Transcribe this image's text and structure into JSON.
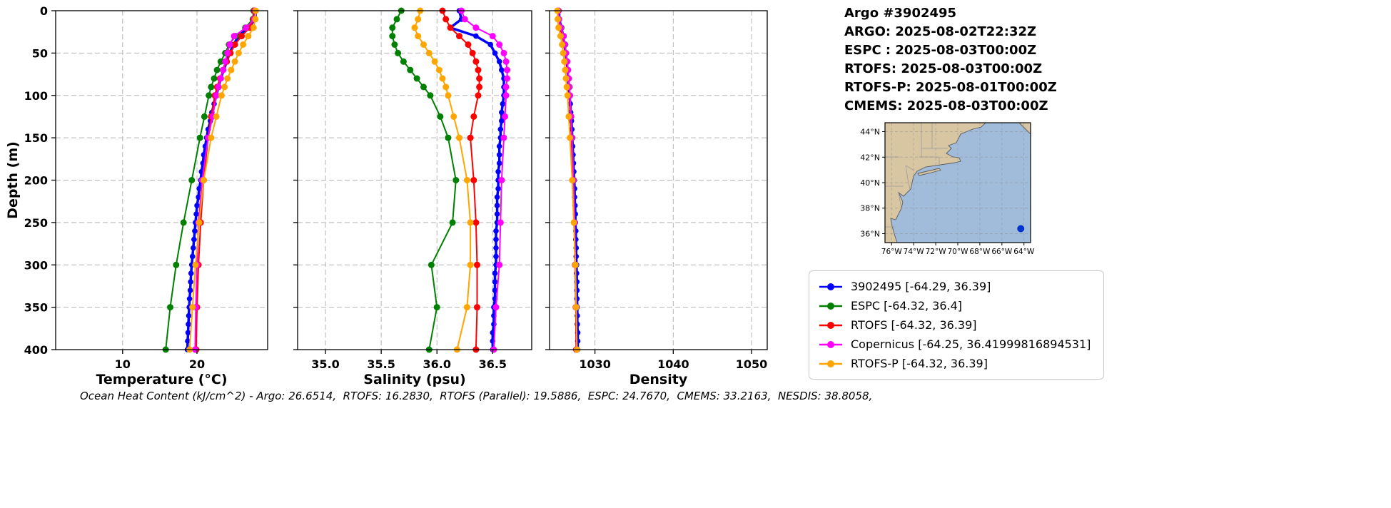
{
  "header": {
    "lines": [
      "Argo #3902495",
      "ARGO: 2025-08-02T22:32Z",
      "ESPC : 2025-08-03T00:00Z",
      "RTOFS: 2025-08-03T00:00Z",
      "RTOFS-P: 2025-08-01T00:00Z",
      "CMEMS: 2025-08-03T00:00Z"
    ]
  },
  "legend": {
    "items": [
      {
        "label": "3902495 [-64.29, 36.39]",
        "color": "#0000ff"
      },
      {
        "label": "ESPC [-64.32, 36.4]",
        "color": "#008000"
      },
      {
        "label": "RTOFS [-64.32, 36.39]",
        "color": "#ff0000"
      },
      {
        "label": "Copernicus [-64.25, 36.41999816894531]",
        "color": "#ff00ff"
      },
      {
        "label": "RTOFS-P [-64.32, 36.39]",
        "color": "#ffa500"
      }
    ]
  },
  "map": {
    "extent": [
      -76.6,
      -63.4,
      35.3,
      44.7
    ],
    "lon_tick_vals": [
      -76,
      -74,
      -72,
      -70,
      -68,
      -66,
      -64
    ],
    "lon_tick_labels": [
      "76°W",
      "74°W",
      "72°W",
      "70°W",
      "68°W",
      "66°W",
      "64°W"
    ],
    "lat_tick_vals": [
      44,
      42,
      40,
      38,
      36
    ],
    "lat_tick_labels": [
      "44°N",
      "42°N",
      "40°N",
      "38°N",
      "36°N"
    ],
    "float_lon": -64.29,
    "float_lat": 36.39,
    "colors": {
      "ocean": "#a1bcdb",
      "land": "#d8c5a2",
      "border": "#9a9a9a",
      "coast": "#5a5a5a",
      "dot": "#0033cc"
    }
  },
  "footer": {
    "caption": "Ocean Heat Content (kJ/cm^2) - Argo: 26.6514,  RTOFS: 16.2830,  RTOFS (Parallel): 19.5886,  ESPC: 24.7670,  CMEMS: 33.2163,  NESDIS: 38.8058,"
  },
  "chart_data": {
    "type": "line",
    "ylabel": "Depth (m)",
    "ylim": [
      0,
      400
    ],
    "y_inverted": true,
    "yticks": [
      0,
      50,
      100,
      150,
      200,
      250,
      300,
      350,
      400
    ],
    "grid": "dashed",
    "depth_levels": {
      "argo": [
        0,
        10,
        20,
        30,
        40,
        50,
        60,
        70,
        80,
        90,
        100,
        110,
        120,
        130,
        140,
        150,
        160,
        170,
        180,
        190,
        200,
        210,
        220,
        230,
        240,
        250,
        260,
        270,
        280,
        290,
        300,
        310,
        320,
        330,
        340,
        350,
        360,
        370,
        380,
        390,
        400
      ],
      "model": [
        0,
        10,
        20,
        30,
        40,
        50,
        60,
        70,
        80,
        90,
        100,
        125,
        150,
        200,
        250,
        300,
        350,
        400
      ]
    },
    "panels": [
      {
        "id": "temperature",
        "xlabel": "Temperature (°C)",
        "xlim": [
          1,
          29.5
        ],
        "xticks": [
          10,
          20
        ],
        "xtick_labels": [
          "10",
          "20"
        ],
        "series": [
          {
            "name": "3902495",
            "color": "#0000ff",
            "lw": 3.5,
            "r": 3.8,
            "depths": "argo",
            "values": [
              27.9,
              27.85,
              26.9,
              25.6,
              24.9,
              24.4,
              24.0,
              23.6,
              23.2,
              22.9,
              22.6,
              22.3,
              22.0,
              21.8,
              21.5,
              21.3,
              21.1,
              20.9,
              20.8,
              20.6,
              20.5,
              20.3,
              20.2,
              20.0,
              19.9,
              19.8,
              19.7,
              19.6,
              19.5,
              19.4,
              19.3,
              19.2,
              19.15,
              19.1,
              19.0,
              18.95,
              18.9,
              18.85,
              18.8,
              18.75,
              18.7
            ]
          },
          {
            "name": "ESPC",
            "color": "#008000",
            "lw": 2,
            "r": 4.5,
            "depths": "model",
            "values": [
              27.6,
              27.5,
              26.5,
              25.2,
              24.3,
              23.8,
              23.2,
              22.7,
              22.3,
              21.9,
              21.6,
              21.0,
              20.4,
              19.3,
              18.2,
              17.2,
              16.4,
              15.8
            ]
          },
          {
            "name": "RTOFS",
            "color": "#ff0000",
            "lw": 2,
            "r": 4.5,
            "depths": "model",
            "values": [
              27.7,
              27.6,
              27.1,
              26.0,
              25.1,
              24.5,
              24.0,
              23.5,
              23.1,
              22.7,
              22.4,
              21.9,
              21.5,
              20.9,
              20.5,
              20.2,
              20.0,
              19.9
            ]
          },
          {
            "name": "Copernicus",
            "color": "#ff00ff",
            "lw": 2,
            "r": 4.5,
            "depths": "model",
            "values": [
              27.8,
              27.7,
              26.6,
              25.0,
              24.4,
              24.1,
              23.8,
              23.5,
              23.2,
              22.9,
              22.6,
              22.1,
              21.5,
              20.7,
              20.2,
              20.0,
              19.85,
              19.75
            ]
          },
          {
            "name": "RTOFS-P",
            "color": "#ffa500",
            "lw": 2,
            "r": 4.5,
            "depths": "model",
            "values": [
              27.9,
              27.85,
              27.6,
              26.9,
              26.2,
              25.6,
              25.1,
              24.6,
              24.1,
              23.7,
              23.3,
              22.6,
              21.9,
              20.9,
              20.3,
              19.8,
              19.4,
              19.0
            ]
          }
        ]
      },
      {
        "id": "salinity",
        "xlabel": "Salinity (psu)",
        "xlim": [
          34.75,
          36.85
        ],
        "xticks": [
          35.0,
          35.5,
          36.0,
          36.5
        ],
        "xtick_labels": [
          "35.0",
          "35.5",
          "36.0",
          "36.5"
        ],
        "series": [
          {
            "name": "3902495",
            "color": "#0000ff",
            "lw": 3.5,
            "r": 3.8,
            "depths": "argo",
            "values": [
              36.2,
              36.22,
              36.12,
              36.35,
              36.48,
              36.52,
              36.56,
              36.58,
              36.6,
              36.6,
              36.6,
              36.59,
              36.58,
              36.58,
              36.57,
              36.57,
              36.56,
              36.56,
              36.56,
              36.55,
              36.55,
              36.55,
              36.54,
              36.54,
              36.54,
              36.54,
              36.53,
              36.53,
              36.53,
              36.53,
              36.53,
              36.52,
              36.52,
              36.52,
              36.52,
              36.51,
              36.51,
              36.51,
              36.5,
              36.5,
              36.5
            ]
          },
          {
            "name": "ESPC",
            "color": "#008000",
            "lw": 2,
            "r": 4.5,
            "depths": "model",
            "values": [
              35.68,
              35.64,
              35.6,
              35.6,
              35.62,
              35.65,
              35.7,
              35.76,
              35.82,
              35.88,
              35.94,
              36.03,
              36.1,
              36.17,
              36.14,
              35.95,
              36.0,
              35.93
            ]
          },
          {
            "name": "RTOFS",
            "color": "#ff0000",
            "lw": 2,
            "r": 4.5,
            "depths": "model",
            "values": [
              36.05,
              36.08,
              36.12,
              36.2,
              36.28,
              36.32,
              36.35,
              36.37,
              36.38,
              36.38,
              36.37,
              36.33,
              36.3,
              36.33,
              36.35,
              36.36,
              36.36,
              36.35
            ]
          },
          {
            "name": "Copernicus",
            "color": "#ff00ff",
            "lw": 2,
            "r": 4.5,
            "depths": "model",
            "values": [
              36.22,
              36.25,
              36.35,
              36.5,
              36.56,
              36.6,
              36.62,
              36.63,
              36.63,
              36.62,
              36.62,
              36.61,
              36.6,
              36.58,
              36.57,
              36.56,
              36.53,
              36.51
            ]
          },
          {
            "name": "RTOFS-P",
            "color": "#ffa500",
            "lw": 2,
            "r": 4.5,
            "depths": "model",
            "values": [
              35.85,
              35.83,
              35.8,
              35.83,
              35.88,
              35.93,
              35.98,
              36.02,
              36.05,
              36.08,
              36.1,
              36.15,
              36.2,
              36.27,
              36.3,
              36.3,
              36.27,
              36.18
            ]
          }
        ]
      },
      {
        "id": "density",
        "xlabel": "Density",
        "xlim": [
          1024.2,
          1052
        ],
        "xticks": [
          1030,
          1040,
          1050
        ],
        "xtick_labels": [
          "1030",
          "1040",
          "1050"
        ],
        "series": [
          {
            "name": "3902495",
            "color": "#0000ff",
            "lw": 3.5,
            "r": 3.8,
            "depths": "argo",
            "values": [
              1025.4,
              1025.45,
              1025.7,
              1025.95,
              1026.1,
              1026.25,
              1026.4,
              1026.5,
              1026.6,
              1026.65,
              1026.75,
              1026.85,
              1026.9,
              1027.0,
              1027.05,
              1027.1,
              1027.15,
              1027.2,
              1027.25,
              1027.3,
              1027.35,
              1027.4,
              1027.4,
              1027.45,
              1027.5,
              1027.5,
              1027.55,
              1027.55,
              1027.6,
              1027.6,
              1027.65,
              1027.65,
              1027.7,
              1027.7,
              1027.7,
              1027.75,
              1027.75,
              1027.75,
              1027.8,
              1027.8,
              1027.8
            ]
          },
          {
            "name": "ESPC",
            "color": "#008000",
            "lw": 2,
            "r": 4.5,
            "depths": "model",
            "values": [
              1025.35,
              1025.4,
              1025.7,
              1026.0,
              1026.2,
              1026.3,
              1026.45,
              1026.55,
              1026.65,
              1026.75,
              1026.8,
              1026.95,
              1027.1,
              1027.3,
              1027.4,
              1027.5,
              1027.6,
              1027.7
            ]
          },
          {
            "name": "RTOFS",
            "color": "#ff0000",
            "lw": 2,
            "r": 4.5,
            "depths": "model",
            "values": [
              1025.3,
              1025.35,
              1025.5,
              1025.85,
              1026.1,
              1026.25,
              1026.4,
              1026.5,
              1026.6,
              1026.7,
              1026.75,
              1026.9,
              1027.0,
              1027.2,
              1027.35,
              1027.45,
              1027.55,
              1027.6
            ]
          },
          {
            "name": "Copernicus",
            "color": "#ff00ff",
            "lw": 2,
            "r": 4.5,
            "depths": "model",
            "values": [
              1025.35,
              1025.4,
              1025.65,
              1026.0,
              1026.15,
              1026.3,
              1026.45,
              1026.55,
              1026.65,
              1026.7,
              1026.8,
              1026.95,
              1027.05,
              1027.25,
              1027.4,
              1027.5,
              1027.6,
              1027.65
            ]
          },
          {
            "name": "RTOFS-P",
            "color": "#ffa500",
            "lw": 2,
            "r": 4.5,
            "depths": "model",
            "values": [
              1025.2,
              1025.25,
              1025.35,
              1025.6,
              1025.8,
              1025.95,
              1026.1,
              1026.2,
              1026.3,
              1026.4,
              1026.5,
              1026.65,
              1026.8,
              1027.1,
              1027.3,
              1027.5,
              1027.6,
              1027.7
            ]
          }
        ]
      }
    ]
  }
}
